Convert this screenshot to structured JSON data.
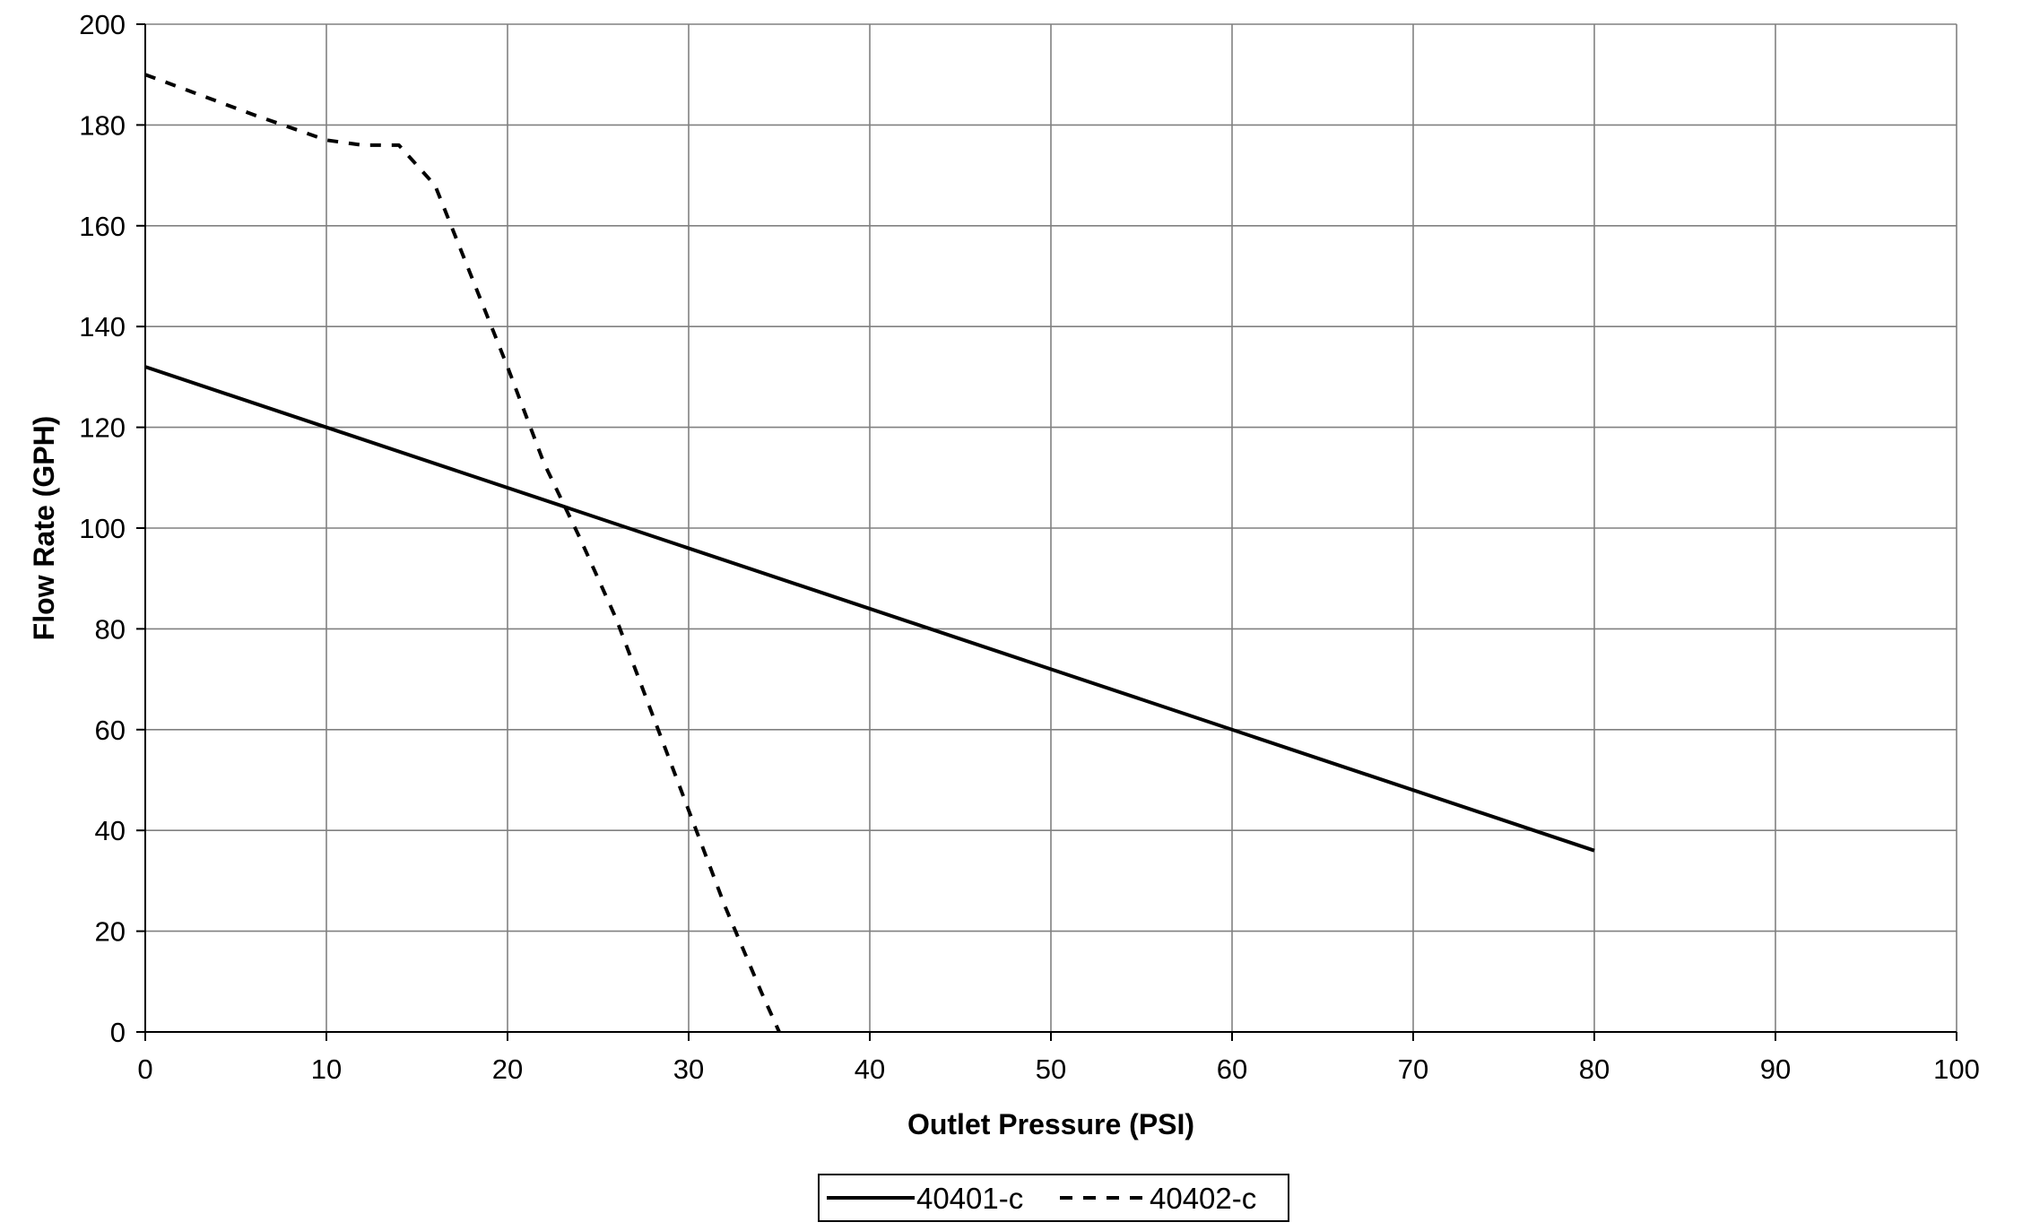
{
  "chart_data": {
    "type": "line",
    "title": "",
    "xlabel": "Outlet Pressure (PSI)",
    "ylabel": "Flow Rate (GPH)",
    "xlim": [
      0,
      100
    ],
    "ylim": [
      0,
      200
    ],
    "x_ticks": [
      "0",
      "10",
      "20",
      "30",
      "40",
      "50",
      "60",
      "70",
      "80",
      "90",
      "100"
    ],
    "y_ticks": [
      "0",
      "20",
      "40",
      "60",
      "80",
      "100",
      "120",
      "140",
      "160",
      "180",
      "200"
    ],
    "grid": true,
    "legend_position": "bottom",
    "series": [
      {
        "name": "40401-c",
        "style": "solid",
        "color": "#000000",
        "x": [
          0,
          80
        ],
        "y": [
          132,
          36
        ]
      },
      {
        "name": "40402-c",
        "style": "dashed",
        "color": "#000000",
        "x": [
          0,
          3,
          6,
          10,
          12,
          14,
          16,
          18,
          20,
          22,
          24,
          26,
          28,
          30,
          32,
          34,
          35
        ],
        "y": [
          190,
          186,
          182,
          177,
          176,
          176,
          168,
          150,
          132,
          113,
          98,
          82,
          63,
          44,
          25,
          8,
          0
        ]
      }
    ]
  }
}
